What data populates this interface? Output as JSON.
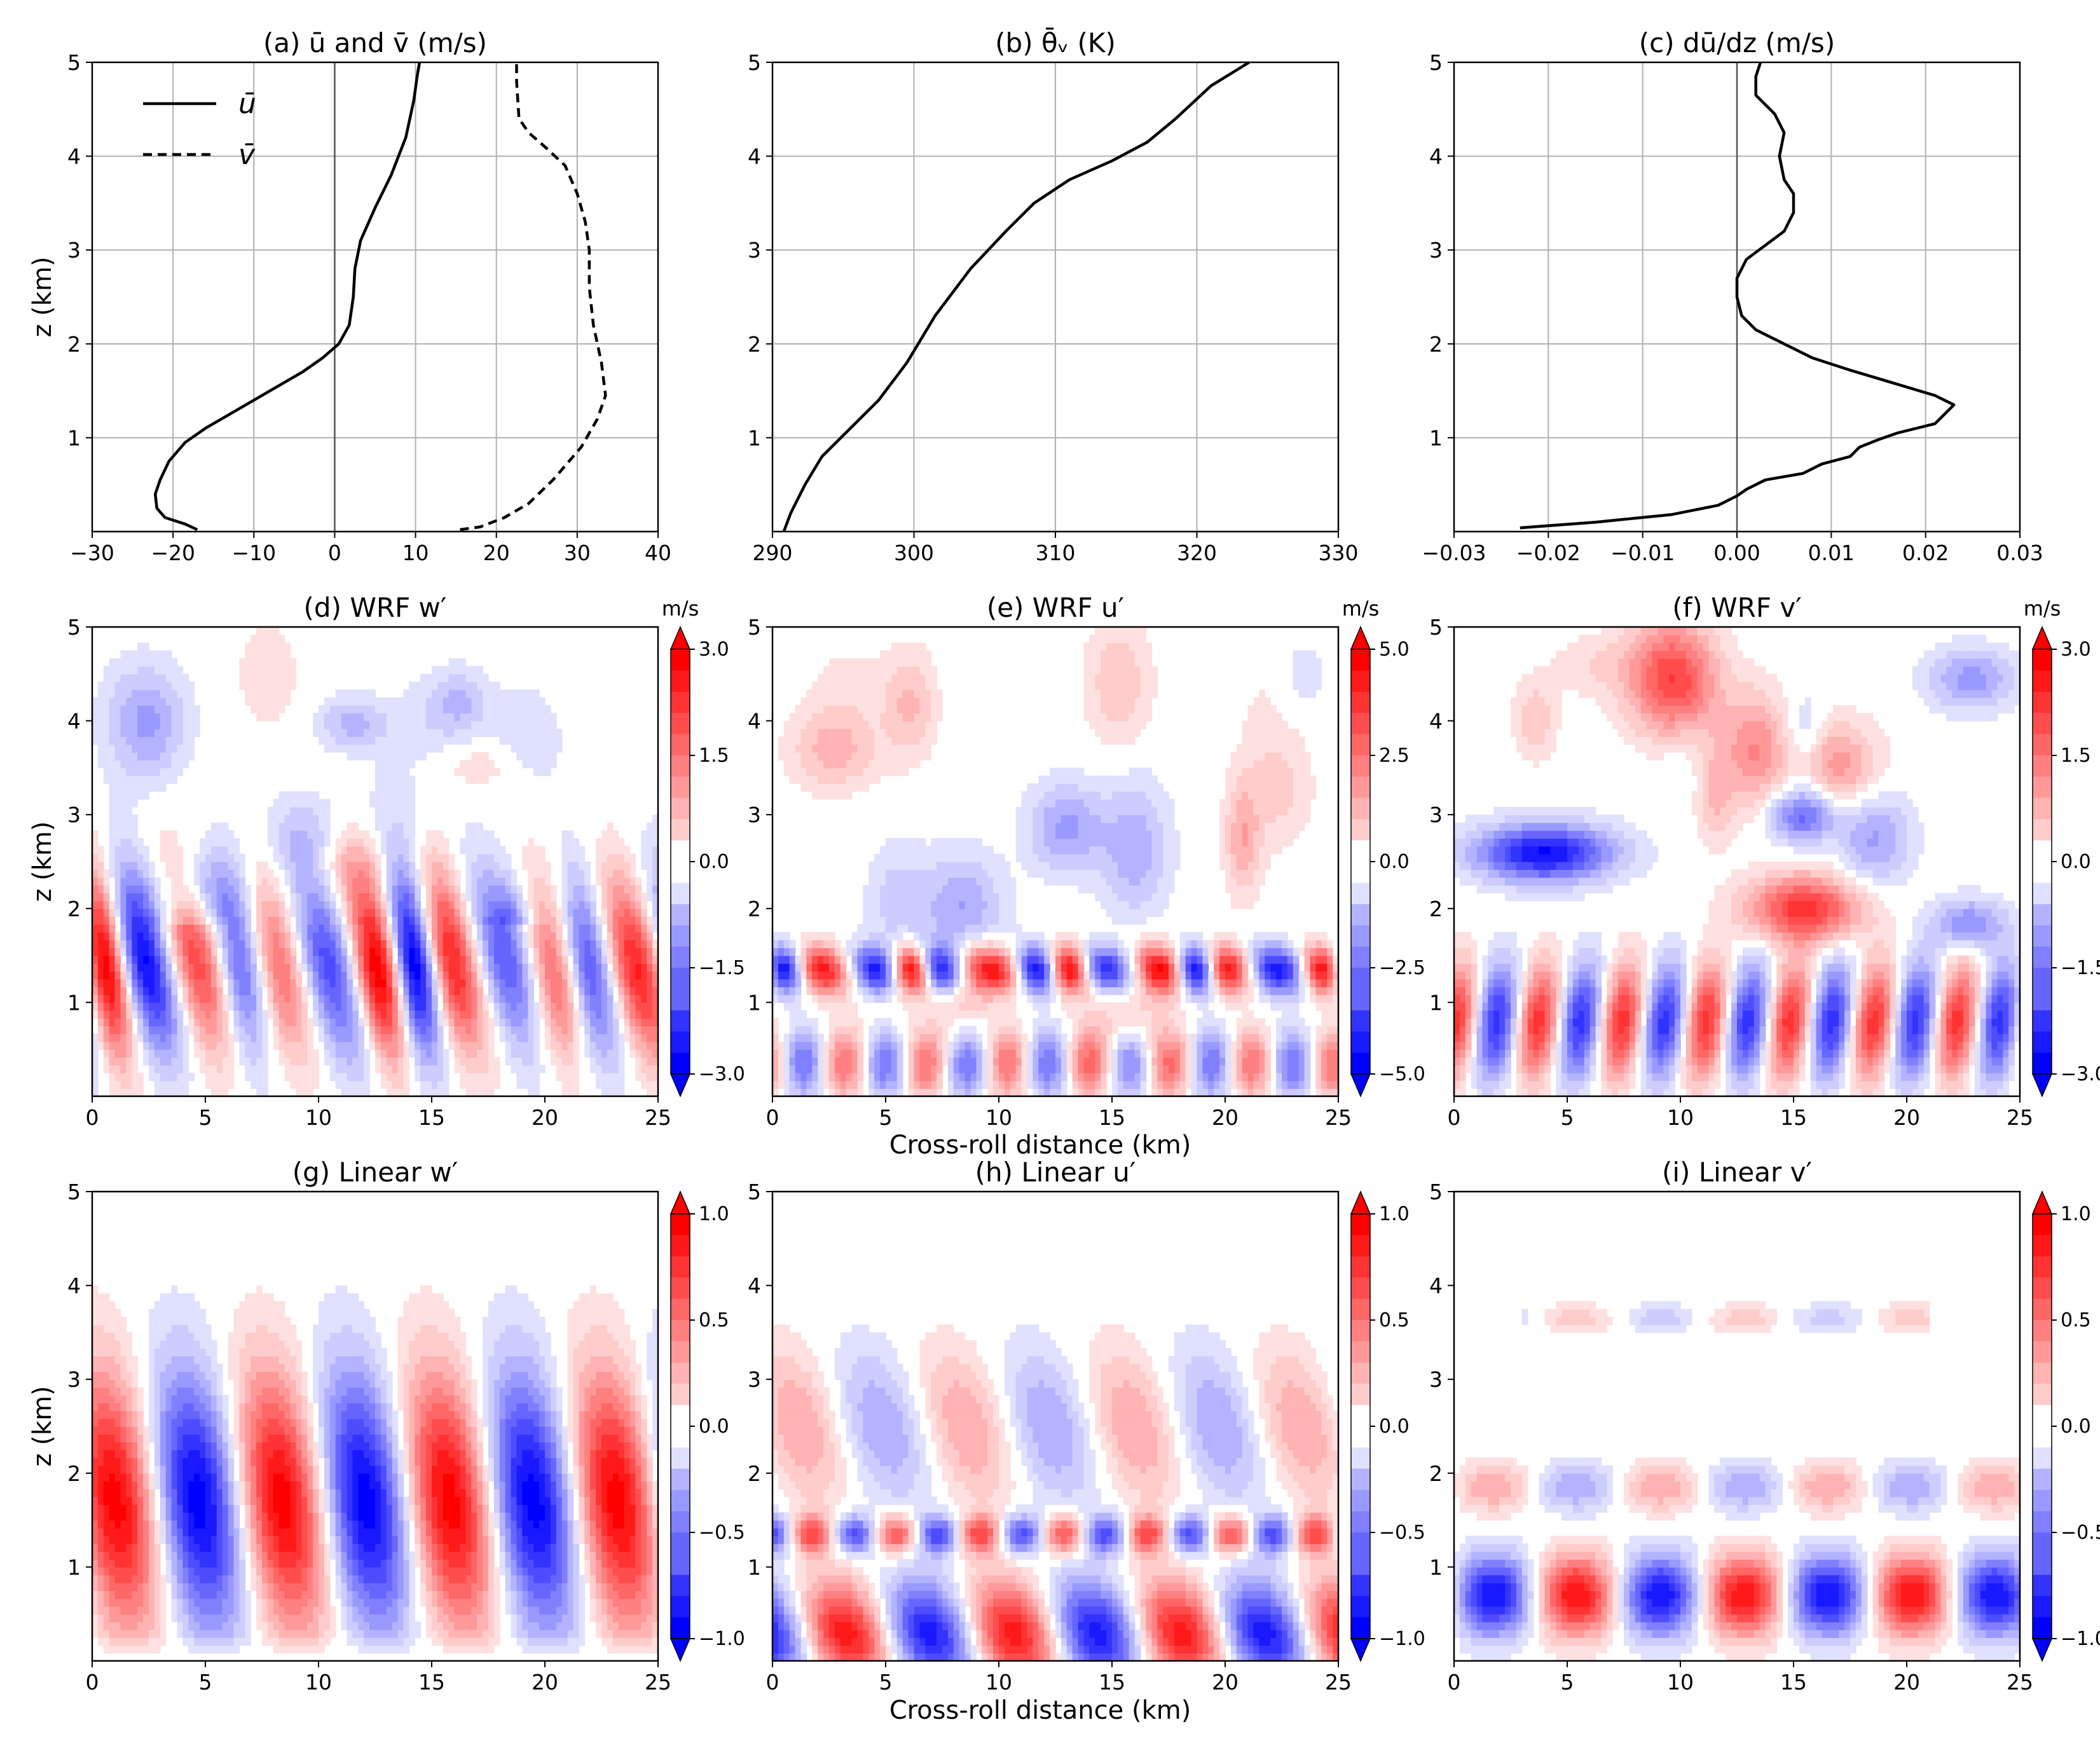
{
  "figure": {
    "colors": {
      "red": "#ff0000",
      "blue": "#0000ff",
      "white": "#ffffff",
      "grid": "#b0b0b0",
      "line": "#000000"
    }
  },
  "shared": {
    "xlabel": "Cross-roll distance (km)",
    "ylabel": "z (km)"
  },
  "chart_data": [
    {
      "id": "a",
      "type": "line",
      "title": "(a) ū and v̄ (m/s)",
      "xlabel": "",
      "ylabel": "z (km)",
      "xlim": [
        -30,
        40
      ],
      "ylim": [
        0,
        5
      ],
      "xticks": [
        -30,
        -20,
        -10,
        0,
        10,
        20,
        30,
        40
      ],
      "xtick_labels": [
        "−30",
        "−20",
        "−10",
        "0",
        "10",
        "20",
        "30",
        "40"
      ],
      "yticks": [
        1,
        2,
        3,
        4,
        5
      ],
      "ytick_labels": [
        "1",
        "2",
        "3",
        "4",
        "5"
      ],
      "grid": true,
      "zero_line_x": 0,
      "legend": {
        "placement": "top-left",
        "entries": [
          "ū",
          "v̄"
        ]
      },
      "series": [
        {
          "name": "ū",
          "style": "solid",
          "points": [
            [
              -17,
              0.02
            ],
            [
              -18.5,
              0.08
            ],
            [
              -21,
              0.15
            ],
            [
              -22,
              0.25
            ],
            [
              -22.2,
              0.4
            ],
            [
              -21.6,
              0.55
            ],
            [
              -20.5,
              0.75
            ],
            [
              -18.5,
              0.95
            ],
            [
              -16,
              1.1
            ],
            [
              -12,
              1.3
            ],
            [
              -8,
              1.5
            ],
            [
              -4,
              1.7
            ],
            [
              -1.5,
              1.85
            ],
            [
              0.5,
              2.0
            ],
            [
              1.8,
              2.2
            ],
            [
              2.3,
              2.5
            ],
            [
              2.5,
              2.8
            ],
            [
              3.2,
              3.1
            ],
            [
              5,
              3.45
            ],
            [
              7,
              3.8
            ],
            [
              8.8,
              4.2
            ],
            [
              9.8,
              4.6
            ],
            [
              10.2,
              4.85
            ],
            [
              10.5,
              5.0
            ]
          ]
        },
        {
          "name": "v̄",
          "style": "dashed",
          "points": [
            [
              15.5,
              0.02
            ],
            [
              18,
              0.05
            ],
            [
              21,
              0.15
            ],
            [
              24,
              0.3
            ],
            [
              27,
              0.55
            ],
            [
              30.5,
              0.9
            ],
            [
              32.5,
              1.2
            ],
            [
              33.5,
              1.45
            ],
            [
              33,
              1.8
            ],
            [
              32,
              2.2
            ],
            [
              31.5,
              2.6
            ],
            [
              31.5,
              3.0
            ],
            [
              31,
              3.3
            ],
            [
              30,
              3.6
            ],
            [
              28.5,
              3.9
            ],
            [
              26,
              4.1
            ],
            [
              24,
              4.25
            ],
            [
              22.8,
              4.4
            ],
            [
              22.5,
              4.8
            ],
            [
              22.5,
              5.0
            ]
          ]
        }
      ]
    },
    {
      "id": "b",
      "type": "line",
      "title": "(b) θ̄ᵥ (K)",
      "xlabel": "",
      "ylabel": "",
      "xlim": [
        290,
        330
      ],
      "ylim": [
        0,
        5
      ],
      "xticks": [
        290,
        300,
        310,
        320,
        330
      ],
      "xtick_labels": [
        "290",
        "300",
        "310",
        "320",
        "330"
      ],
      "yticks": [
        1,
        2,
        3,
        4,
        5
      ],
      "ytick_labels": [
        "1",
        "2",
        "3",
        "4",
        "5"
      ],
      "grid": true,
      "series": [
        {
          "name": "θ̄ᵥ",
          "style": "solid",
          "points": [
            [
              290.8,
              0.0
            ],
            [
              291.3,
              0.2
            ],
            [
              292.3,
              0.5
            ],
            [
              293.5,
              0.8
            ],
            [
              295.5,
              1.1
            ],
            [
              297.5,
              1.4
            ],
            [
              299.5,
              1.8
            ],
            [
              301.5,
              2.3
            ],
            [
              304,
              2.8
            ],
            [
              306.5,
              3.2
            ],
            [
              308.5,
              3.5
            ],
            [
              311,
              3.75
            ],
            [
              314,
              3.95
            ],
            [
              316.5,
              4.15
            ],
            [
              318.5,
              4.4
            ],
            [
              321,
              4.75
            ],
            [
              323.7,
              5.0
            ]
          ]
        }
      ]
    },
    {
      "id": "c",
      "type": "line",
      "title": "(c) dū/dz (m/s)",
      "xlabel": "",
      "ylabel": "",
      "xlim": [
        -0.03,
        0.03
      ],
      "ylim": [
        0,
        5
      ],
      "xticks": [
        -0.03,
        -0.02,
        -0.01,
        0.0,
        0.01,
        0.02,
        0.03
      ],
      "xtick_labels": [
        "−0.03",
        "−0.02",
        "−0.01",
        "0.00",
        "0.01",
        "0.02",
        "0.03"
      ],
      "yticks": [
        1,
        2,
        3,
        4,
        5
      ],
      "ytick_labels": [
        "1",
        "2",
        "3",
        "4",
        "5"
      ],
      "grid": true,
      "zero_line_x": 0,
      "series": [
        {
          "name": "dū/dz",
          "style": "solid",
          "points": [
            [
              -0.023,
              0.04
            ],
            [
              -0.015,
              0.1
            ],
            [
              -0.007,
              0.18
            ],
            [
              -0.002,
              0.28
            ],
            [
              0.0,
              0.38
            ],
            [
              0.001,
              0.45
            ],
            [
              0.003,
              0.55
            ],
            [
              0.007,
              0.62
            ],
            [
              0.009,
              0.72
            ],
            [
              0.012,
              0.8
            ],
            [
              0.013,
              0.9
            ],
            [
              0.015,
              0.98
            ],
            [
              0.017,
              1.05
            ],
            [
              0.021,
              1.15
            ],
            [
              0.023,
              1.35
            ],
            [
              0.021,
              1.45
            ],
            [
              0.016,
              1.6
            ],
            [
              0.012,
              1.72
            ],
            [
              0.008,
              1.85
            ],
            [
              0.005,
              2.0
            ],
            [
              0.002,
              2.15
            ],
            [
              0.0005,
              2.3
            ],
            [
              0.0,
              2.5
            ],
            [
              0.0,
              2.7
            ],
            [
              0.001,
              2.9
            ],
            [
              0.003,
              3.05
            ],
            [
              0.005,
              3.2
            ],
            [
              0.006,
              3.4
            ],
            [
              0.006,
              3.6
            ],
            [
              0.005,
              3.75
            ],
            [
              0.0045,
              4.0
            ],
            [
              0.005,
              4.25
            ],
            [
              0.004,
              4.45
            ],
            [
              0.002,
              4.65
            ],
            [
              0.002,
              4.85
            ],
            [
              0.0025,
              5.0
            ]
          ]
        }
      ]
    },
    {
      "id": "d",
      "type": "heatmap",
      "title": "(d) WRF w′",
      "xlabel": "",
      "ylabel": "z (km)",
      "xlim": [
        0,
        25
      ],
      "ylim": [
        0,
        5
      ],
      "xticks": [
        0,
        5,
        10,
        15,
        20,
        25
      ],
      "xtick_labels": [
        "0",
        "5",
        "10",
        "15",
        "20",
        "25"
      ],
      "yticks": [
        1,
        2,
        3,
        4,
        5
      ],
      "ytick_labels": [
        "1",
        "2",
        "3",
        "4",
        "5"
      ],
      "colorbar": {
        "unit": "m/s",
        "vmin": -3.0,
        "vmax": 3.0,
        "ticks": [
          3.0,
          1.5,
          0.0,
          -1.5,
          -3.0
        ],
        "tick_labels": [
          "3.0",
          "1.5",
          "0.0",
          "−1.5",
          "−3.0"
        ]
      },
      "field": {
        "model": "wrf",
        "wavelength": 3.9,
        "tilt": 0.75,
        "zc": 1.4,
        "zs": 0.95,
        "amp": 1.0,
        "upper": 0.35,
        "vmax": 3.0,
        "seed": 11
      }
    },
    {
      "id": "e",
      "type": "heatmap",
      "title": "(e) WRF u′",
      "xlabel": "Cross-roll distance (km)",
      "ylabel": "",
      "xlim": [
        0,
        25
      ],
      "ylim": [
        0,
        5
      ],
      "xticks": [
        0,
        5,
        10,
        15,
        20,
        25
      ],
      "xtick_labels": [
        "0",
        "5",
        "10",
        "15",
        "20",
        "25"
      ],
      "yticks": [
        1,
        2,
        3,
        4,
        5
      ],
      "ytick_labels": [
        "1",
        "2",
        "3",
        "4",
        "5"
      ],
      "colorbar": {
        "unit": "m/s",
        "vmin": -5.0,
        "vmax": 5.0,
        "ticks": [
          5.0,
          2.5,
          0.0,
          -2.5,
          -5.0
        ],
        "tick_labels": [
          "5.0",
          "2.5",
          "0.0",
          "−2.5",
          "−5.0"
        ]
      },
      "field": {
        "model": "wrf_u",
        "wavelength": 3.6,
        "tilt": 0.5,
        "zc": 0.35,
        "zs": 0.35,
        "amp": 0.8,
        "upper": 0.5,
        "vmax": 5.0,
        "seed": 23
      }
    },
    {
      "id": "f",
      "type": "heatmap",
      "title": "(f) WRF v′",
      "xlabel": "",
      "ylabel": "",
      "xlim": [
        0,
        25
      ],
      "ylim": [
        0,
        5
      ],
      "xticks": [
        0,
        5,
        10,
        15,
        20,
        25
      ],
      "xtick_labels": [
        "0",
        "5",
        "10",
        "15",
        "20",
        "25"
      ],
      "yticks": [
        1,
        2,
        3,
        4,
        5
      ],
      "ytick_labels": [
        "1",
        "2",
        "3",
        "4",
        "5"
      ],
      "colorbar": {
        "unit": "m/s",
        "vmin": -3.0,
        "vmax": 3.0,
        "ticks": [
          3.0,
          1.5,
          0.0,
          -1.5,
          -3.0
        ],
        "tick_labels": [
          "3.0",
          "1.5",
          "0.0",
          "−1.5",
          "−3.0"
        ]
      },
      "field": {
        "model": "wrf_v",
        "wavelength": 3.7,
        "tilt": 0.4,
        "zc": 0.6,
        "zs": 0.5,
        "amp": 0.9,
        "upper": 0.8,
        "vmax": 3.0,
        "seed": 37
      }
    },
    {
      "id": "g",
      "type": "heatmap",
      "title": "(g) Linear w′",
      "xlabel": "",
      "ylabel": "z (km)",
      "xlim": [
        0,
        25
      ],
      "ylim": [
        0,
        5
      ],
      "xticks": [
        0,
        5,
        10,
        15,
        20,
        25
      ],
      "xtick_labels": [
        "0",
        "5",
        "10",
        "15",
        "20",
        "25"
      ],
      "yticks": [
        1,
        2,
        3,
        4,
        5
      ],
      "ytick_labels": [
        "1",
        "2",
        "3",
        "4",
        "5"
      ],
      "colorbar": {
        "unit": "",
        "vmin": -1.0,
        "vmax": 1.0,
        "ticks": [
          1.0,
          0.5,
          0.0,
          -0.5,
          -1.0
        ],
        "tick_labels": [
          "1.0",
          "0.5",
          "0.0",
          "−0.5",
          "−1.0"
        ]
      },
      "field": {
        "model": "lin_w",
        "wavelength": 7.4,
        "phase": 1.0,
        "vmax": 1.0
      }
    },
    {
      "id": "h",
      "type": "heatmap",
      "title": "(h) Linear u′",
      "xlabel": "Cross-roll distance (km)",
      "ylabel": "",
      "xlim": [
        0,
        25
      ],
      "ylim": [
        0,
        5
      ],
      "xticks": [
        0,
        5,
        10,
        15,
        20,
        25
      ],
      "xtick_labels": [
        "0",
        "5",
        "10",
        "15",
        "20",
        "25"
      ],
      "yticks": [
        1,
        2,
        3,
        4,
        5
      ],
      "ytick_labels": [
        "1",
        "2",
        "3",
        "4",
        "5"
      ],
      "colorbar": {
        "unit": "",
        "vmin": -1.0,
        "vmax": 1.0,
        "ticks": [
          1.0,
          0.5,
          0.0,
          -0.5,
          -1.0
        ],
        "tick_labels": [
          "1.0",
          "0.5",
          "0.0",
          "−0.5",
          "−1.0"
        ]
      },
      "field": {
        "model": "lin_u",
        "wavelength": 7.4,
        "phase": 3.0,
        "vmax": 1.0
      }
    },
    {
      "id": "i",
      "type": "heatmap",
      "title": "(i) Linear v′",
      "xlabel": "",
      "ylabel": "",
      "xlim": [
        0,
        25
      ],
      "ylim": [
        0,
        5
      ],
      "xticks": [
        0,
        5,
        10,
        15,
        20,
        25
      ],
      "xtick_labels": [
        "0",
        "5",
        "10",
        "15",
        "20",
        "25"
      ],
      "yticks": [
        1,
        2,
        3,
        4,
        5
      ],
      "ytick_labels": [
        "1",
        "2",
        "3",
        "4",
        "5"
      ],
      "colorbar": {
        "unit": "",
        "vmin": -1.0,
        "vmax": 1.0,
        "ticks": [
          1.0,
          0.5,
          0.0,
          -0.5,
          -1.0
        ],
        "tick_labels": [
          "1.0",
          "0.5",
          "0.0",
          "−0.5",
          "−1.0"
        ]
      },
      "field": {
        "model": "lin_v",
        "wavelength": 7.4,
        "phase": 4.6,
        "vmax": 1.0
      }
    }
  ]
}
